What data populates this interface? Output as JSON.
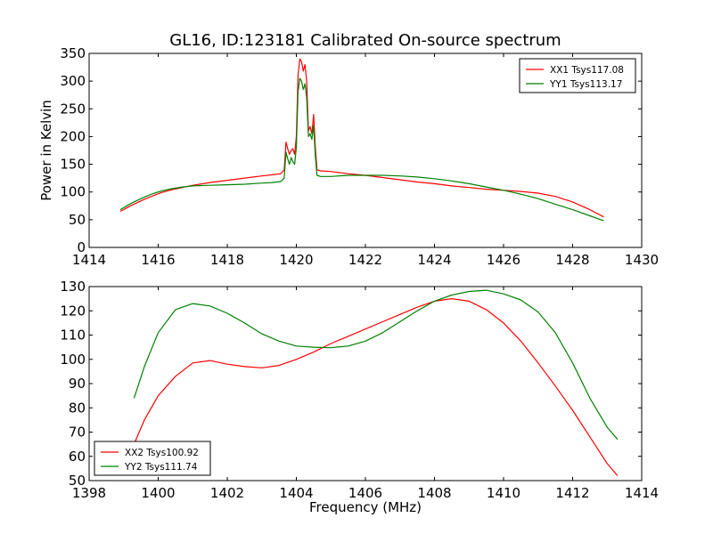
{
  "figure_title": "GL16, ID:123181 Calibrated On-source spectrum",
  "chart_data": [
    {
      "type": "line",
      "panel": "top",
      "title": "GL16, ID:123181 Calibrated On-source spectrum",
      "xlabel": "",
      "ylabel": "Power in Kelvin",
      "xlim": [
        1414,
        1430
      ],
      "ylim": [
        0,
        350
      ],
      "xticks": [
        1414,
        1416,
        1418,
        1420,
        1422,
        1424,
        1426,
        1428,
        1430
      ],
      "yticks": [
        0,
        50,
        100,
        150,
        200,
        250,
        300,
        350
      ],
      "grid": false,
      "legend_position": "top-right",
      "series": [
        {
          "name": "XX1 Tsys117.08",
          "color": "#ff0000",
          "x": [
            1414.9,
            1415.2,
            1415.5,
            1415.8,
            1416.1,
            1416.4,
            1416.7,
            1417.0,
            1417.5,
            1418.0,
            1418.5,
            1419.0,
            1419.3,
            1419.55,
            1419.65,
            1419.7,
            1419.75,
            1419.8,
            1419.85,
            1419.9,
            1419.95,
            1420.0,
            1420.05,
            1420.1,
            1420.15,
            1420.2,
            1420.25,
            1420.3,
            1420.35,
            1420.4,
            1420.45,
            1420.5,
            1420.55,
            1420.6,
            1420.7,
            1421.0,
            1421.5,
            1422.0,
            1422.5,
            1423.0,
            1423.5,
            1424.0,
            1424.5,
            1425.0,
            1425.5,
            1426.0,
            1426.5,
            1427.0,
            1427.5,
            1428.0,
            1428.5,
            1428.9
          ],
          "values": [
            65,
            75,
            84,
            92,
            99,
            104,
            108,
            112,
            117,
            121,
            125,
            129,
            131,
            133,
            140,
            190,
            178,
            168,
            175,
            178,
            168,
            200,
            310,
            340,
            335,
            318,
            330,
            300,
            210,
            218,
            205,
            240,
            180,
            140,
            138,
            137,
            133,
            130,
            126,
            122,
            118,
            115,
            111,
            108,
            105,
            103,
            101,
            98,
            92,
            82,
            68,
            55
          ]
        },
        {
          "name": "YY1 Tsys113.17",
          "color": "#008000",
          "x": [
            1414.9,
            1415.2,
            1415.5,
            1415.8,
            1416.1,
            1416.4,
            1416.7,
            1417.0,
            1417.5,
            1418.0,
            1418.5,
            1419.0,
            1419.3,
            1419.55,
            1419.65,
            1419.7,
            1419.75,
            1419.8,
            1419.85,
            1419.9,
            1419.95,
            1420.0,
            1420.05,
            1420.1,
            1420.15,
            1420.2,
            1420.25,
            1420.3,
            1420.35,
            1420.4,
            1420.45,
            1420.5,
            1420.55,
            1420.6,
            1420.7,
            1421.0,
            1421.5,
            1422.0,
            1422.5,
            1423.0,
            1423.5,
            1424.0,
            1424.5,
            1425.0,
            1425.5,
            1426.0,
            1426.5,
            1427.0,
            1427.5,
            1428.0,
            1428.5,
            1428.9
          ],
          "values": [
            68,
            79,
            88,
            96,
            102,
            106,
            109,
            111,
            112,
            113,
            114,
            116,
            117,
            119,
            125,
            172,
            160,
            150,
            162,
            155,
            150,
            180,
            280,
            305,
            300,
            285,
            295,
            270,
            200,
            205,
            195,
            220,
            165,
            130,
            128,
            128,
            130,
            130,
            130,
            129,
            127,
            124,
            120,
            115,
            109,
            103,
            96,
            88,
            78,
            68,
            57,
            48
          ]
        }
      ]
    },
    {
      "type": "line",
      "panel": "bottom",
      "title": "",
      "xlabel": "Frequency (MHz)",
      "ylabel": "",
      "xlim": [
        1398,
        1414
      ],
      "ylim": [
        50,
        130
      ],
      "xticks": [
        1398,
        1400,
        1402,
        1404,
        1406,
        1408,
        1410,
        1412,
        1414
      ],
      "yticks": [
        50,
        60,
        70,
        80,
        90,
        100,
        110,
        120,
        130
      ],
      "grid": false,
      "legend_position": "bottom-left",
      "series": [
        {
          "name": "XX2 Tsys100.92",
          "color": "#ff0000",
          "x": [
            1399.3,
            1399.6,
            1400.0,
            1400.5,
            1401.0,
            1401.5,
            1402.0,
            1402.5,
            1403.0,
            1403.5,
            1404.0,
            1404.5,
            1405.0,
            1405.5,
            1406.0,
            1406.5,
            1407.0,
            1407.5,
            1408.0,
            1408.5,
            1409.0,
            1409.5,
            1410.0,
            1410.5,
            1411.0,
            1411.5,
            1412.0,
            1412.5,
            1413.0,
            1413.3
          ],
          "values": [
            65,
            75,
            85,
            93,
            98.5,
            99.5,
            98,
            97,
            96.5,
            97.5,
            100,
            103,
            106.5,
            109.5,
            112.5,
            115.5,
            118.5,
            121.5,
            124,
            125,
            124,
            120.5,
            115,
            107.5,
            98.5,
            89,
            79,
            68,
            57,
            52
          ]
        },
        {
          "name": "YY2 Tsys111.74",
          "color": "#008000",
          "x": [
            1399.3,
            1399.6,
            1400.0,
            1400.5,
            1401.0,
            1401.5,
            1402.0,
            1402.5,
            1403.0,
            1403.5,
            1404.0,
            1404.5,
            1405.0,
            1405.5,
            1406.0,
            1406.5,
            1407.0,
            1407.5,
            1408.0,
            1408.5,
            1409.0,
            1409.5,
            1410.0,
            1410.5,
            1411.0,
            1411.5,
            1412.0,
            1412.5,
            1413.0,
            1413.3
          ],
          "values": [
            84,
            97,
            111,
            120.5,
            123,
            122,
            119,
            115,
            110.5,
            107.5,
            105.5,
            105,
            104.8,
            105.5,
            107.5,
            111,
            115.5,
            120,
            124,
            126.5,
            128,
            128.5,
            127,
            124.5,
            119.5,
            111,
            98.5,
            84,
            72,
            67
          ]
        }
      ]
    }
  ]
}
